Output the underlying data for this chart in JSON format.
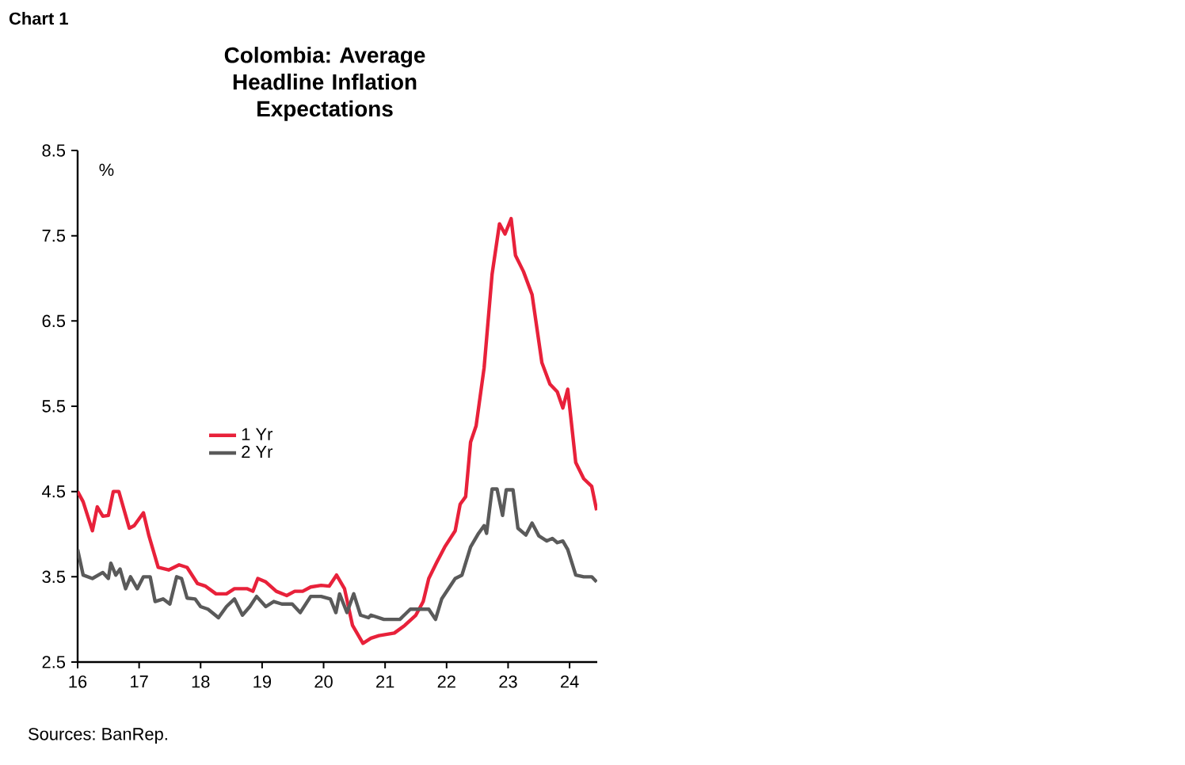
{
  "chart_data": {
    "type": "line",
    "title": "Colombia: Average Headline Inflation Expectations",
    "ylabel": "%",
    "annotations": [
      "Chart 1",
      "Sources: BanRep."
    ],
    "xlim": [
      16,
      24.45
    ],
    "xticks": [
      16,
      17,
      18,
      19,
      20,
      21,
      22,
      23,
      24
    ],
    "ylim": [
      2.5,
      8.5
    ],
    "yticks": [
      2.5,
      3.5,
      4.5,
      5.5,
      6.5,
      7.5,
      8.5
    ],
    "grid": false,
    "legend": "left",
    "marker": "none",
    "line_style": "solid",
    "series": [
      {
        "name": "1 Yr",
        "color": "#e8213a",
        "x": [
          16,
          16.09,
          16.24,
          16.32,
          16.41,
          16.5,
          16.58,
          16.67,
          16.84,
          16.92,
          17.07,
          17.16,
          17.31,
          17.48,
          17.65,
          17.78,
          17.95,
          18.08,
          18.25,
          18.42,
          18.55,
          18.76,
          18.85,
          18.93,
          19.06,
          19.23,
          19.4,
          19.53,
          19.66,
          19.79,
          19.96,
          20.09,
          20.21,
          20.34,
          20.47,
          20.64,
          20.77,
          20.9,
          21.15,
          21.32,
          21.5,
          21.62,
          21.71,
          21.84,
          21.97,
          22.14,
          22.22,
          22.31,
          22.39,
          22.48,
          22.61,
          22.74,
          22.86,
          22.95,
          23.05,
          23.12,
          23.25,
          23.39,
          23.55,
          23.68,
          23.8,
          23.89,
          23.97,
          24.1,
          24.23,
          24.36,
          24.44
        ],
        "values": [
          4.5,
          4.38,
          4.04,
          4.32,
          4.21,
          4.22,
          4.5,
          4.5,
          4.07,
          4.1,
          4.25,
          3.98,
          3.61,
          3.58,
          3.64,
          3.61,
          3.42,
          3.39,
          3.3,
          3.3,
          3.36,
          3.36,
          3.33,
          3.48,
          3.44,
          3.33,
          3.28,
          3.33,
          3.33,
          3.38,
          3.4,
          3.39,
          3.52,
          3.36,
          2.93,
          2.72,
          2.78,
          2.81,
          2.84,
          2.93,
          3.05,
          3.21,
          3.48,
          3.67,
          3.85,
          4.04,
          4.35,
          4.44,
          5.08,
          5.27,
          5.95,
          7.05,
          7.64,
          7.52,
          7.7,
          7.27,
          7.08,
          6.81,
          6.01,
          5.76,
          5.67,
          5.48,
          5.7,
          4.84,
          4.65,
          4.56,
          4.28
        ]
      },
      {
        "name": "2 Yr",
        "color": "#5a5a5a",
        "x": [
          16,
          16.09,
          16.24,
          16.41,
          16.5,
          16.54,
          16.62,
          16.69,
          16.78,
          16.86,
          16.97,
          17.07,
          17.18,
          17.26,
          17.39,
          17.5,
          17.61,
          17.69,
          17.78,
          17.91,
          18.0,
          18.12,
          18.29,
          18.42,
          18.55,
          18.68,
          18.8,
          18.91,
          19.06,
          19.19,
          19.32,
          19.49,
          19.62,
          19.79,
          19.96,
          20.11,
          20.2,
          20.26,
          20.38,
          20.49,
          20.6,
          20.73,
          20.77,
          20.98,
          21.24,
          21.41,
          21.58,
          21.71,
          21.82,
          21.92,
          22.14,
          22.25,
          22.39,
          22.52,
          22.61,
          22.65,
          22.74,
          22.82,
          22.91,
          22.97,
          23.08,
          23.16,
          23.29,
          23.39,
          23.5,
          23.63,
          23.72,
          23.8,
          23.89,
          23.97,
          24.1,
          24.23,
          24.36,
          24.44
        ],
        "values": [
          3.82,
          3.52,
          3.48,
          3.55,
          3.48,
          3.66,
          3.52,
          3.59,
          3.36,
          3.5,
          3.36,
          3.5,
          3.5,
          3.21,
          3.24,
          3.18,
          3.5,
          3.48,
          3.25,
          3.24,
          3.15,
          3.12,
          3.02,
          3.15,
          3.24,
          3.05,
          3.15,
          3.27,
          3.15,
          3.21,
          3.18,
          3.18,
          3.08,
          3.27,
          3.27,
          3.24,
          3.08,
          3.3,
          3.08,
          3.3,
          3.05,
          3.02,
          3.05,
          3.0,
          3.0,
          3.12,
          3.12,
          3.12,
          3.0,
          3.24,
          3.48,
          3.52,
          3.85,
          4.01,
          4.1,
          4.01,
          4.53,
          4.53,
          4.22,
          4.52,
          4.52,
          4.07,
          3.99,
          4.13,
          3.98,
          3.92,
          3.95,
          3.9,
          3.92,
          3.82,
          3.52,
          3.5,
          3.5,
          3.44
        ]
      }
    ]
  }
}
